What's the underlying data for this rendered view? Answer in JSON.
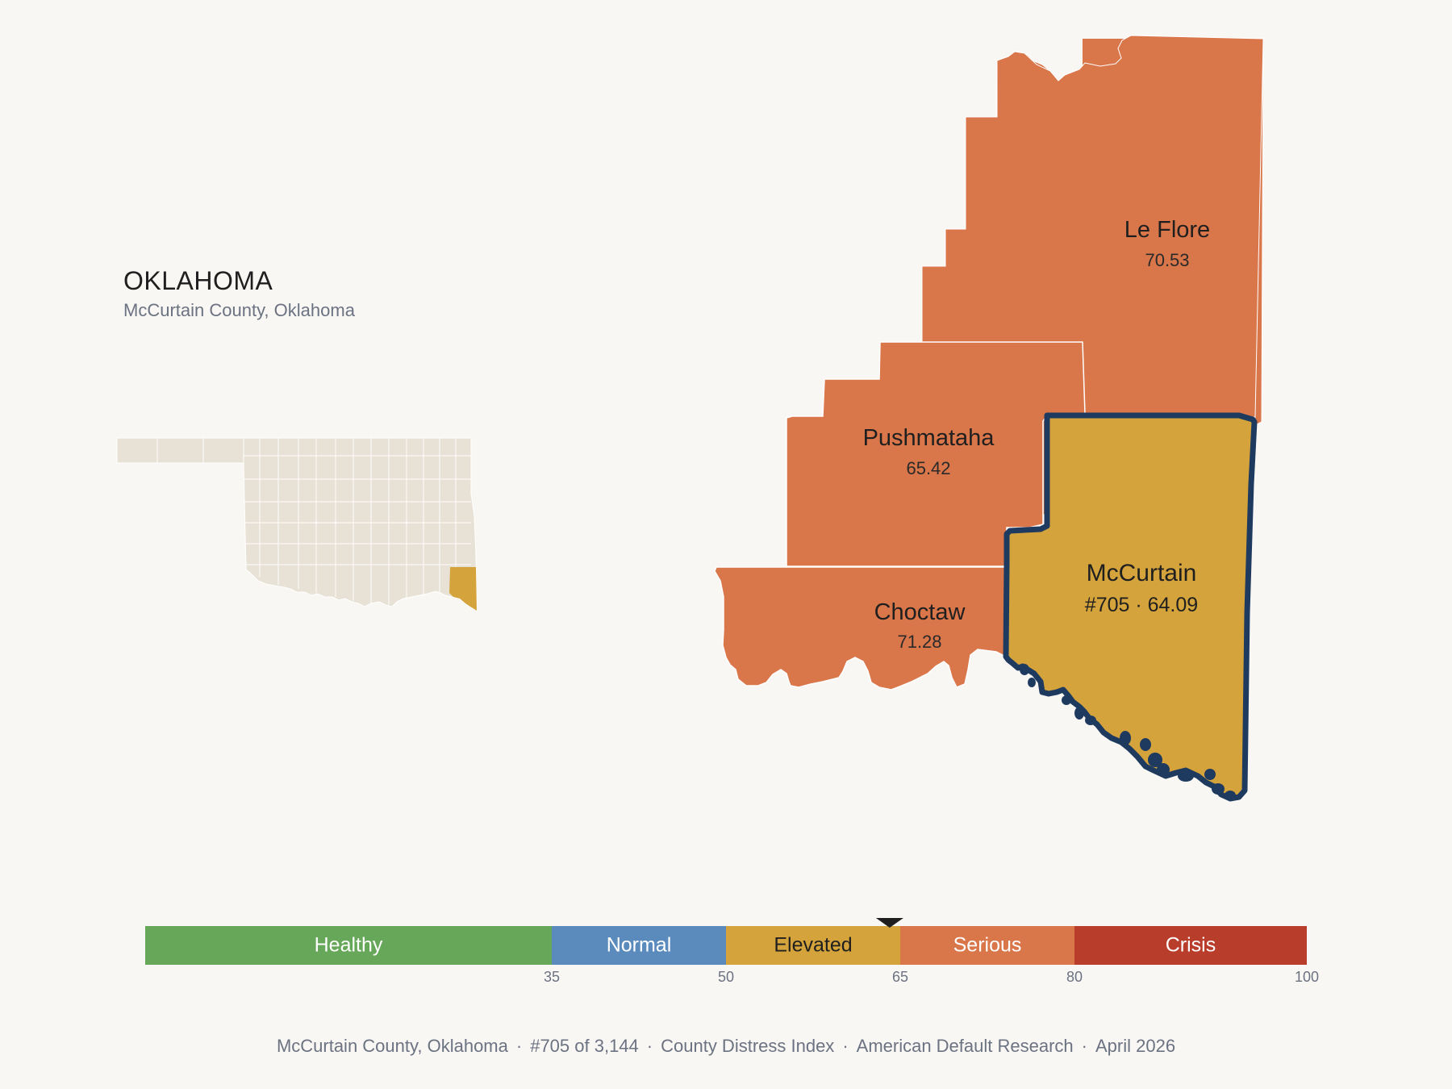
{
  "header": {
    "state": "OKLAHOMA",
    "subtitle": "McCurtain County, Oklahoma"
  },
  "colors": {
    "background": "#f9f7f3",
    "state_fill": "#e8e2d6",
    "serious": "#d9764a",
    "elevated": "#d4a33c",
    "normal": "#5b8bbc",
    "healthy": "#67a759",
    "crisis": "#b93d2b",
    "focus_outline": "#1f3a5f"
  },
  "counties": [
    {
      "id": "le-flore",
      "name": "Le Flore",
      "score": "70.53",
      "category": "Serious"
    },
    {
      "id": "pushmataha",
      "name": "Pushmataha",
      "score": "65.42",
      "category": "Serious"
    },
    {
      "id": "choctaw",
      "name": "Choctaw",
      "score": "71.28",
      "category": "Serious"
    },
    {
      "id": "mccurtain",
      "name": "McCurtain",
      "rank_score": "#705 · 64.09",
      "category": "Elevated",
      "focus": true
    }
  ],
  "legend": {
    "min": 0,
    "max": 100,
    "value": 64.09,
    "segments": [
      {
        "label": "Healthy",
        "from": 0,
        "to": 35,
        "color": "#67a759",
        "text_color": "#ffffff"
      },
      {
        "label": "Normal",
        "from": 35,
        "to": 50,
        "color": "#5b8bbc",
        "text_color": "#ffffff"
      },
      {
        "label": "Elevated",
        "from": 50,
        "to": 65,
        "color": "#d4a33c",
        "text_color": "#1f1f1f"
      },
      {
        "label": "Serious",
        "from": 65,
        "to": 80,
        "color": "#d9764a",
        "text_color": "#ffffff"
      },
      {
        "label": "Crisis",
        "from": 80,
        "to": 100,
        "color": "#b93d2b",
        "text_color": "#ffffff"
      }
    ],
    "ticks": [
      "35",
      "50",
      "65",
      "80",
      "100"
    ]
  },
  "footer": {
    "county": "McCurtain County, Oklahoma",
    "rank": "#705 of 3,144",
    "index": "County Distress Index",
    "source": "American Default Research",
    "date": "April 2026"
  }
}
